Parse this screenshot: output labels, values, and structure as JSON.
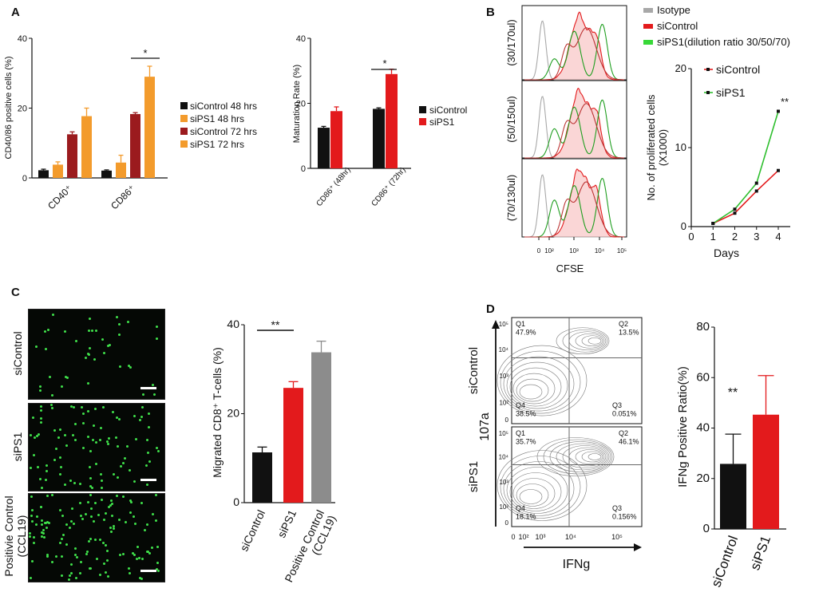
{
  "panels": {
    "A": "A",
    "B": "B",
    "C": "C",
    "D": "D"
  },
  "colors": {
    "black": "#111111",
    "orange": "#f39b2c",
    "red": "#e31a1c",
    "darkred": "#9b1b1e",
    "gray": "#8c8c8c",
    "green": "#2fbf2f",
    "lightgreen": "#38d838"
  },
  "chart_data": [
    {
      "id": "A1",
      "type": "bar",
      "ylabel": "CD40/86 positive cells (%)",
      "ylim": [
        0,
        40
      ],
      "yticks": [
        "0",
        "20",
        "40"
      ],
      "categories": [
        "CD40⁺",
        "CD86⁺"
      ],
      "series": [
        {
          "name": "siControl 48 hrs",
          "color": "#111111",
          "values": [
            2.2,
            2.1
          ],
          "err": [
            0.3,
            0.2
          ]
        },
        {
          "name": "siPS1      48 hrs",
          "color": "#f39b2c",
          "values": [
            3.8,
            4.4
          ],
          "err": [
            0.8,
            2.1
          ]
        },
        {
          "name": "siControl 72 hrs",
          "color": "#9b1b1e",
          "values": [
            12.5,
            18.3
          ],
          "err": [
            0.7,
            0.4
          ]
        },
        {
          "name": "siPS1      72 hrs",
          "color": "#f39b2c",
          "values": [
            17.7,
            29.0
          ],
          "err": [
            2.3,
            3.0
          ]
        }
      ],
      "annotation": "*"
    },
    {
      "id": "A2",
      "type": "bar",
      "ylabel": "Maturation Rate (%)",
      "ylim": [
        0,
        40
      ],
      "yticks": [
        "0",
        "20",
        "40"
      ],
      "categories": [
        "CD86⁺ (48hr)",
        "CD86⁺ (72hr)"
      ],
      "series": [
        {
          "name": "siControl",
          "color": "#111111",
          "values": [
            12.5,
            18.3
          ],
          "err": [
            0.4,
            0.3
          ]
        },
        {
          "name": "siPS1",
          "color": "#e31a1c",
          "values": [
            17.6,
            29.0
          ],
          "err": [
            1.3,
            1.5
          ]
        }
      ],
      "annotation": "*"
    },
    {
      "id": "B-hist",
      "type": "histogram",
      "xlabel": "CFSE",
      "xticks": [
        "0",
        "10²",
        "10³",
        "10⁴",
        "10⁵"
      ],
      "rows": [
        "(30/170ul)",
        "(50/150ul)",
        "(70/130ul)"
      ],
      "legend": [
        "Isotype",
        "siControl",
        "siPS1(dilution ratio 30/50/70)"
      ]
    },
    {
      "id": "B-line",
      "type": "line",
      "xlabel": "Days",
      "ylabel": "No. of proliferated cells\n(X1000)",
      "x": [
        1,
        2,
        3,
        4
      ],
      "xlim": [
        0,
        4
      ],
      "xticks": [
        "0",
        "1",
        "2",
        "3",
        "4"
      ],
      "ylim": [
        0,
        20
      ],
      "yticks": [
        "0",
        "10",
        "20"
      ],
      "series": [
        {
          "name": "siControl",
          "color": "#e31a1c",
          "values": [
            0.4,
            1.7,
            4.5,
            7.1
          ]
        },
        {
          "name": "siPS1",
          "color": "#2fbf2f",
          "values": [
            0.4,
            2.2,
            5.5,
            14.6
          ]
        }
      ],
      "annotation": "**"
    },
    {
      "id": "C",
      "type": "bar",
      "ylabel": "Migrated CD8⁺ T-cells (%)",
      "ylim": [
        0,
        40
      ],
      "yticks": [
        "0",
        "20",
        "40"
      ],
      "categories": [
        "siControl",
        "siPS1",
        "Positive Control\n(CCL19)"
      ],
      "values": [
        11.3,
        25.8,
        33.8
      ],
      "err": [
        1.2,
        1.4,
        2.5
      ],
      "colors": [
        "#111111",
        "#e31a1c",
        "#8c8c8c"
      ],
      "annotation": "**"
    },
    {
      "id": "D-flow",
      "type": "contour",
      "xlabel": "IFNg",
      "ylabel": "107a",
      "xticks": [
        "0",
        "10²",
        "10³",
        "10⁴",
        "10⁵"
      ],
      "yticks": [
        "0",
        "10²",
        "10³",
        "10⁴",
        "10⁵"
      ],
      "rows": [
        {
          "label": "siControl",
          "q1": "Q1\n47.9%",
          "q2": "Q2\n13.5%",
          "q3": "Q3\n0.051%",
          "q4": "Q4\n38.5%"
        },
        {
          "label": "siPS1",
          "q1": "Q1\n35.7%",
          "q2": "Q2\n46.1%",
          "q3": "Q3\n0.156%",
          "q4": "Q4\n18.1%"
        }
      ]
    },
    {
      "id": "D-bar",
      "type": "bar",
      "ylabel": "IFNg Positive Ratio(%)",
      "ylim": [
        0,
        80
      ],
      "yticks": [
        "0",
        "20",
        "40",
        "60",
        "80"
      ],
      "categories": [
        "siControl",
        "siPS1"
      ],
      "values": [
        25.8,
        45.3
      ],
      "err": [
        11.8,
        15.5
      ],
      "colors": [
        "#111111",
        "#e31a1c"
      ],
      "annotation": "**"
    }
  ],
  "micro_labels": [
    "siControl",
    "siPS1",
    "Positivie Control\n(CCL19)"
  ]
}
